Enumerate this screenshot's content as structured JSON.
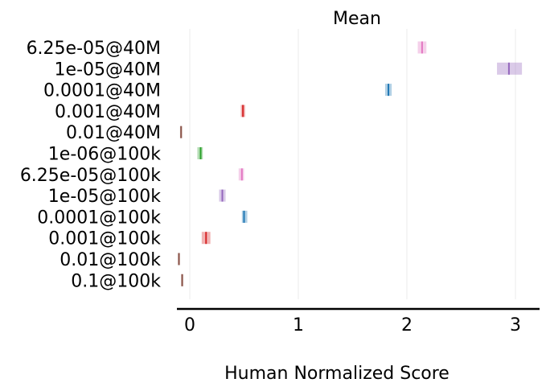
{
  "chart_data": {
    "type": "interval",
    "title": "Mean",
    "xlabel": "Human Normalized Score",
    "ylabel": "",
    "xlim": [
      -0.12,
      3.25
    ],
    "xticks": [
      0,
      1,
      2,
      3
    ],
    "grid": "vertical",
    "categories": [
      "6.25e-05@40M",
      "1e-05@40M",
      "0.0001@40M",
      "0.001@40M",
      "0.01@40M",
      "1e-06@100k",
      "6.25e-05@100k",
      "1e-05@100k",
      "0.0001@100k",
      "0.001@100k",
      "0.01@100k",
      "0.1@100k"
    ],
    "points": [
      {
        "label": "6.25e-05@40M",
        "low": 2.1,
        "mean": 2.14,
        "high": 2.18,
        "color": "#e377c2"
      },
      {
        "label": "1e-05@40M",
        "low": 2.83,
        "mean": 2.94,
        "high": 3.06,
        "color": "#9467bd"
      },
      {
        "label": "0.0001@40M",
        "low": 1.8,
        "mean": 1.83,
        "high": 1.86,
        "color": "#1f77b4"
      },
      {
        "label": "0.001@40M",
        "low": 0.47,
        "mean": 0.49,
        "high": 0.51,
        "color": "#d62728"
      },
      {
        "label": "0.01@40M",
        "low": -0.09,
        "mean": -0.08,
        "high": -0.07,
        "color": "#8c564b"
      },
      {
        "label": "1e-06@100k",
        "low": 0.07,
        "mean": 0.1,
        "high": 0.12,
        "color": "#2ca02c"
      },
      {
        "label": "6.25e-05@100k",
        "low": 0.45,
        "mean": 0.48,
        "high": 0.5,
        "color": "#e377c2"
      },
      {
        "label": "1e-05@100k",
        "low": 0.27,
        "mean": 0.3,
        "high": 0.33,
        "color": "#9467bd"
      },
      {
        "label": "0.0001@100k",
        "low": 0.48,
        "mean": 0.5,
        "high": 0.53,
        "color": "#1f77b4"
      },
      {
        "label": "0.001@100k",
        "low": 0.11,
        "mean": 0.15,
        "high": 0.19,
        "color": "#d62728"
      },
      {
        "label": "0.01@100k",
        "low": -0.11,
        "mean": -0.1,
        "high": -0.09,
        "color": "#8c564b"
      },
      {
        "label": "0.1@100k",
        "low": -0.08,
        "mean": -0.07,
        "high": -0.06,
        "color": "#8c564b"
      }
    ]
  }
}
